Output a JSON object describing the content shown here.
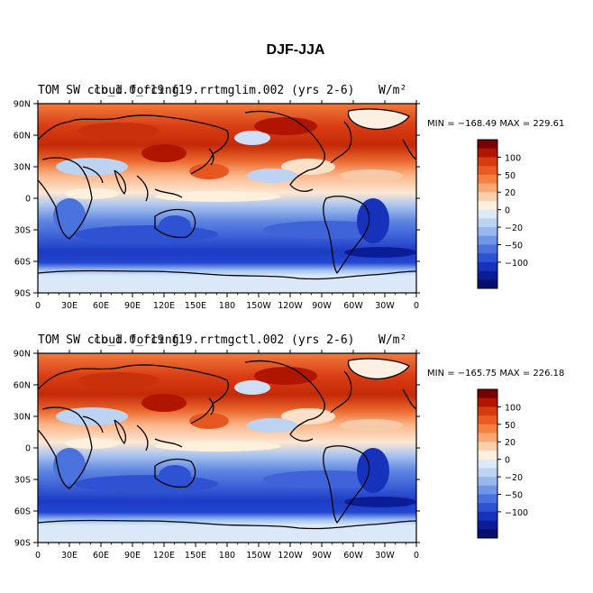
{
  "figure": {
    "title": "DJF-JJA"
  },
  "panels": [
    {
      "header_left": "TOM SW cloud forcing",
      "header_left_overprint": "cb_1.0_f19",
      "header_center": "f19.rrtmglim.002 (yrs 2-6)",
      "header_units": "W/m²",
      "stats": "MIN = −168.49 MAX = 229.61",
      "min": -168.49,
      "max": 229.61
    },
    {
      "header_left": "TOM SW cloud forcing",
      "header_left_overprint": "cb_1.0_f19",
      "header_center": "f19.rrtmgctl.002 (yrs 2-6)",
      "header_units": "W/m²",
      "stats": "MIN = −165.75 MAX = 226.18",
      "min": -165.75,
      "max": 226.18
    }
  ],
  "axes": {
    "lon_ticks": [
      "0",
      "30E",
      "60E",
      "90E",
      "120E",
      "150E",
      "180",
      "150W",
      "120W",
      "90W",
      "60W",
      "30W",
      "0"
    ],
    "lat_ticks": [
      "90N",
      "60N",
      "30N",
      "0",
      "30S",
      "60S",
      "90S"
    ]
  },
  "colorbar": {
    "labels": [
      "100",
      "50",
      "20",
      "0",
      "−20",
      "−50",
      "−100"
    ],
    "colors": [
      "#7a0000",
      "#b01500",
      "#d63a10",
      "#ea5a25",
      "#f5803f",
      "#fba874",
      "#fdd0ad",
      "#fff0de",
      "#dce9f8",
      "#bcd3f2",
      "#98b8ec",
      "#6f95e6",
      "#4a72dd",
      "#2e52d2",
      "#1632bb",
      "#0b1d96",
      "#060f6e"
    ]
  },
  "chart_data": [
    {
      "type": "heatmap",
      "title": "DJF-JJA",
      "subtitle": "f19.rrtmglim.002 (yrs 2-6)",
      "variable": "TOM SW cloud forcing",
      "units": "W/m²",
      "min": -168.49,
      "max": 229.61,
      "x_ticks": [
        "0",
        "30E",
        "60E",
        "90E",
        "120E",
        "150E",
        "180",
        "150W",
        "120W",
        "90W",
        "60W",
        "30W",
        "0"
      ],
      "y_ticks": [
        "90N",
        "60N",
        "30N",
        "0",
        "30S",
        "60S",
        "90S"
      ],
      "colorbar_levels": [
        -100,
        -50,
        -20,
        0,
        20,
        50,
        100
      ]
    },
    {
      "type": "heatmap",
      "title": "DJF-JJA",
      "subtitle": "f19.rrtmgctl.002 (yrs 2-6)",
      "variable": "TOM SW cloud forcing",
      "units": "W/m²",
      "min": -165.75,
      "max": 226.18,
      "x_ticks": [
        "0",
        "30E",
        "60E",
        "90E",
        "120E",
        "150E",
        "180",
        "150W",
        "120W",
        "90W",
        "60W",
        "30W",
        "0"
      ],
      "y_ticks": [
        "90N",
        "60N",
        "30N",
        "0",
        "30S",
        "60S",
        "90S"
      ],
      "colorbar_levels": [
        -100,
        -50,
        -20,
        0,
        20,
        50,
        100
      ]
    }
  ]
}
